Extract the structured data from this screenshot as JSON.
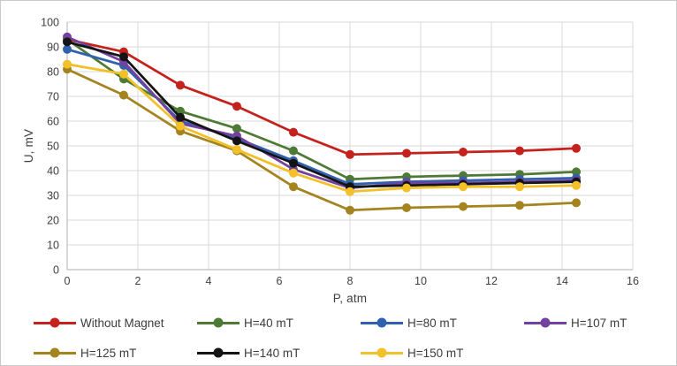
{
  "chart_data": {
    "type": "line",
    "title": "",
    "xlabel": "P, atm",
    "ylabel": "U, mV",
    "xlim": [
      0,
      16
    ],
    "ylim": [
      0,
      100
    ],
    "xticks": [
      0,
      2,
      4,
      6,
      8,
      10,
      12,
      14,
      16
    ],
    "yticks": [
      0,
      10,
      20,
      30,
      40,
      50,
      60,
      70,
      80,
      90,
      100
    ],
    "grid": true,
    "legend_position": "bottom",
    "legend_rows": [
      [
        0,
        1,
        2,
        3
      ],
      [
        4,
        5,
        6
      ]
    ],
    "x": [
      0,
      1.6,
      3.2,
      4.8,
      6.4,
      8,
      9.6,
      11.2,
      12.8,
      14.4
    ],
    "series": [
      {
        "name": "Without Magnet",
        "color": "#c5211d",
        "values": [
          93,
          88,
          74.5,
          66,
          55.5,
          46.5,
          47,
          47.5,
          48,
          49
        ]
      },
      {
        "name": "H=40 mT",
        "color": "#4f7a35",
        "values": [
          93,
          77,
          64,
          57,
          48,
          36.5,
          37.5,
          38,
          38.5,
          39.5
        ]
      },
      {
        "name": "H=80 mT",
        "color": "#3061ae",
        "values": [
          89,
          82.5,
          60,
          53,
          44,
          34.5,
          35.5,
          36,
          36.5,
          37
        ]
      },
      {
        "name": "H=107 mT",
        "color": "#7441a0",
        "values": [
          94,
          84,
          59,
          54,
          40.5,
          33,
          35,
          35,
          35.5,
          36
        ]
      },
      {
        "name": "H=125 mT",
        "color": "#a4841f",
        "values": [
          81,
          70.5,
          56,
          48,
          33.5,
          24,
          25,
          25.5,
          26,
          27
        ]
      },
      {
        "name": "H=140 mT",
        "color": "#141414",
        "values": [
          92,
          86,
          61.5,
          52,
          43,
          33.5,
          34,
          34.5,
          35,
          35.5
        ]
      },
      {
        "name": "H=150 mT",
        "color": "#f2c029",
        "values": [
          83,
          79,
          58,
          48.5,
          39,
          31.5,
          33,
          33.5,
          33.5,
          34
        ]
      }
    ],
    "tick_color": "#3f3f3f",
    "gridline_color": "#d9d9d9",
    "axis_line_color": "#bfbfbf"
  }
}
